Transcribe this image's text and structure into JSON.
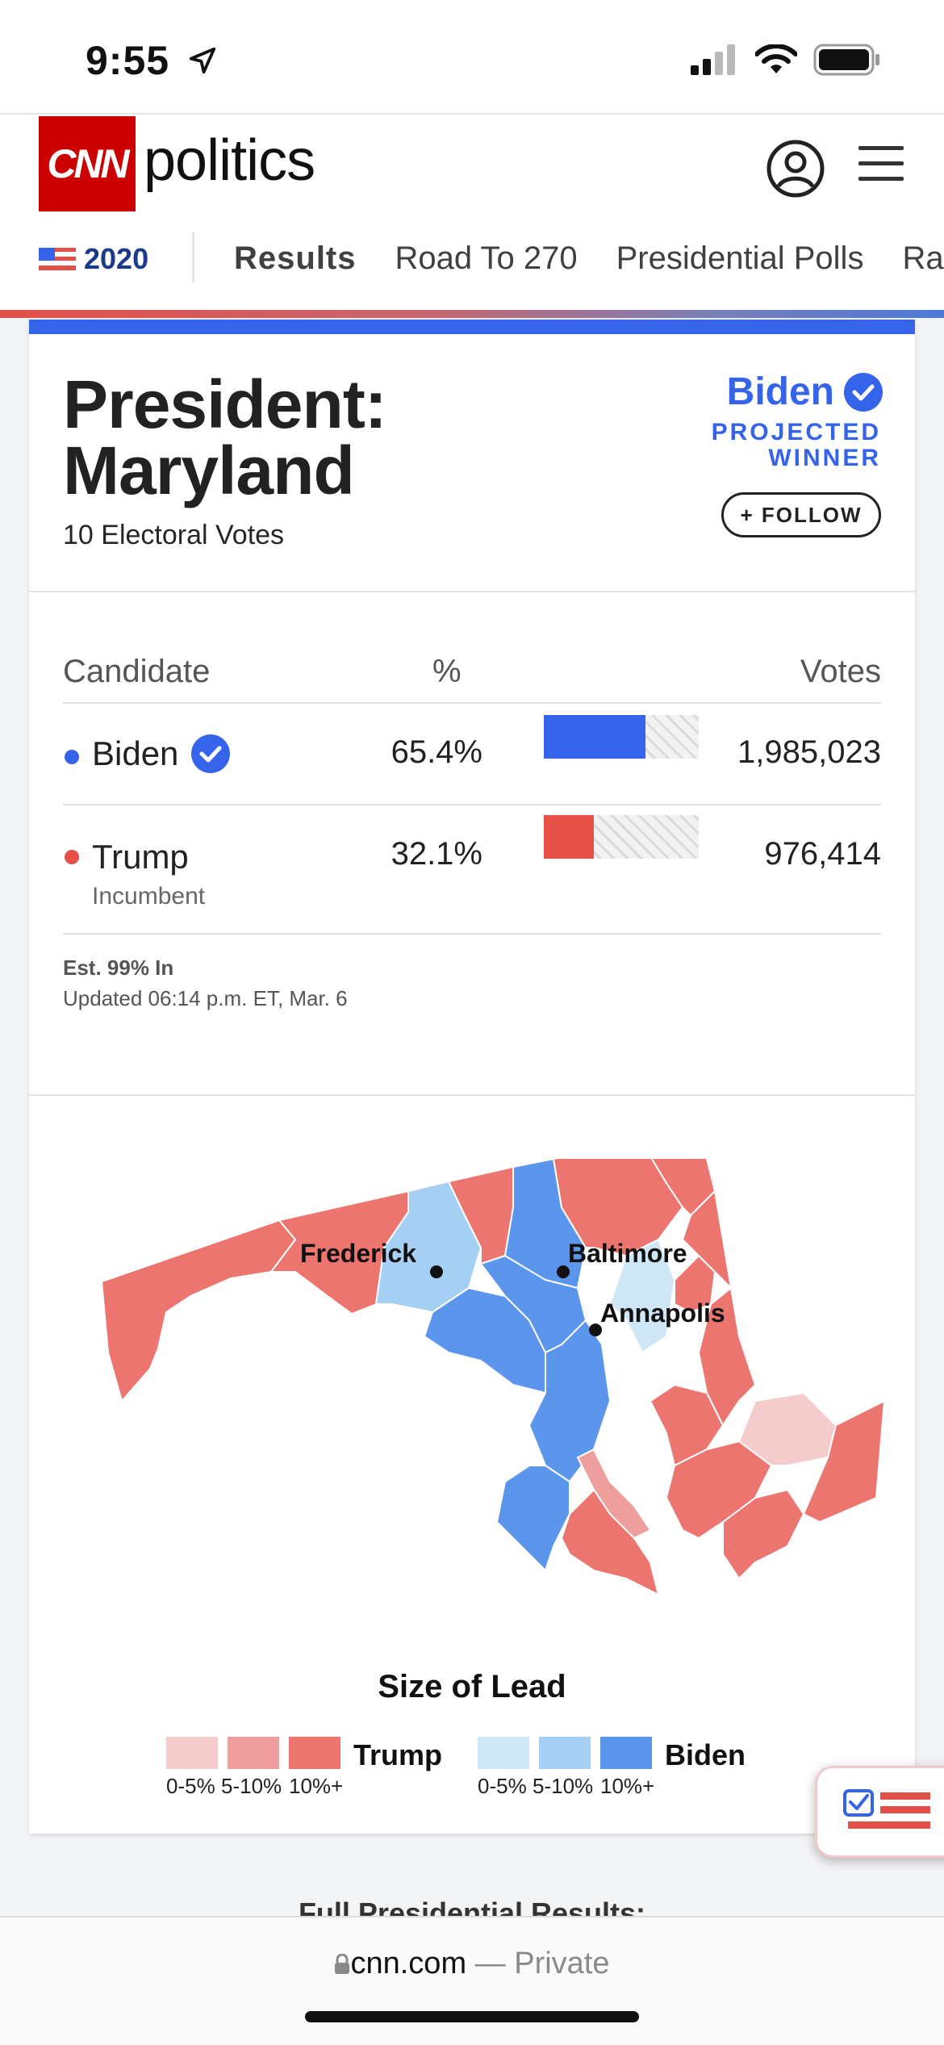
{
  "status_bar": {
    "time": "9:55"
  },
  "header": {
    "logo": "CNN",
    "section": "politics"
  },
  "nav": {
    "year": "2020",
    "items": [
      "Results",
      "Road To 270",
      "Presidential Polls",
      "Races"
    ]
  },
  "race": {
    "title_line1": "President:",
    "title_line2": "Maryland",
    "electoral_votes": "10 Electoral Votes",
    "winner": "Biden",
    "projected_line1": "PROJECTED",
    "projected_line2": "WINNER",
    "follow_label": "+ FOLLOW"
  },
  "results": {
    "headers": {
      "candidate": "Candidate",
      "pct": "%",
      "votes": "Votes"
    },
    "candidates": [
      {
        "name": "Biden",
        "sub": "",
        "pct": "65.4%",
        "pct_value": 65.4,
        "votes": "1,985,023",
        "color": "#3563e9",
        "winner": true
      },
      {
        "name": "Trump",
        "sub": "Incumbent",
        "pct": "32.1%",
        "pct_value": 32.1,
        "votes": "976,414",
        "color": "#e8504a",
        "winner": false
      }
    ],
    "est_in": "Est. 99% In",
    "updated": "Updated 06:14 p.m. ET, Mar. 6"
  },
  "map": {
    "cities": [
      "Frederick",
      "Baltimore",
      "Annapolis"
    ],
    "colors": {
      "trump_0_5": "#f5cccc",
      "trump_5_10": "#ef9e9e",
      "trump_10": "#ec7570",
      "biden_0_5": "#cfe6f7",
      "biden_5_10": "#a6d0f3",
      "biden_10": "#5b95ec"
    }
  },
  "legend": {
    "title": "Size of Lead",
    "trump_label": "Trump",
    "biden_label": "Biden",
    "ranges": [
      "0-5%",
      "5-10%",
      "10%+"
    ]
  },
  "peek_text": "Full Presidential Results:",
  "browser": {
    "domain": "cnn.com",
    "separator": "—",
    "mode": "Private"
  }
}
